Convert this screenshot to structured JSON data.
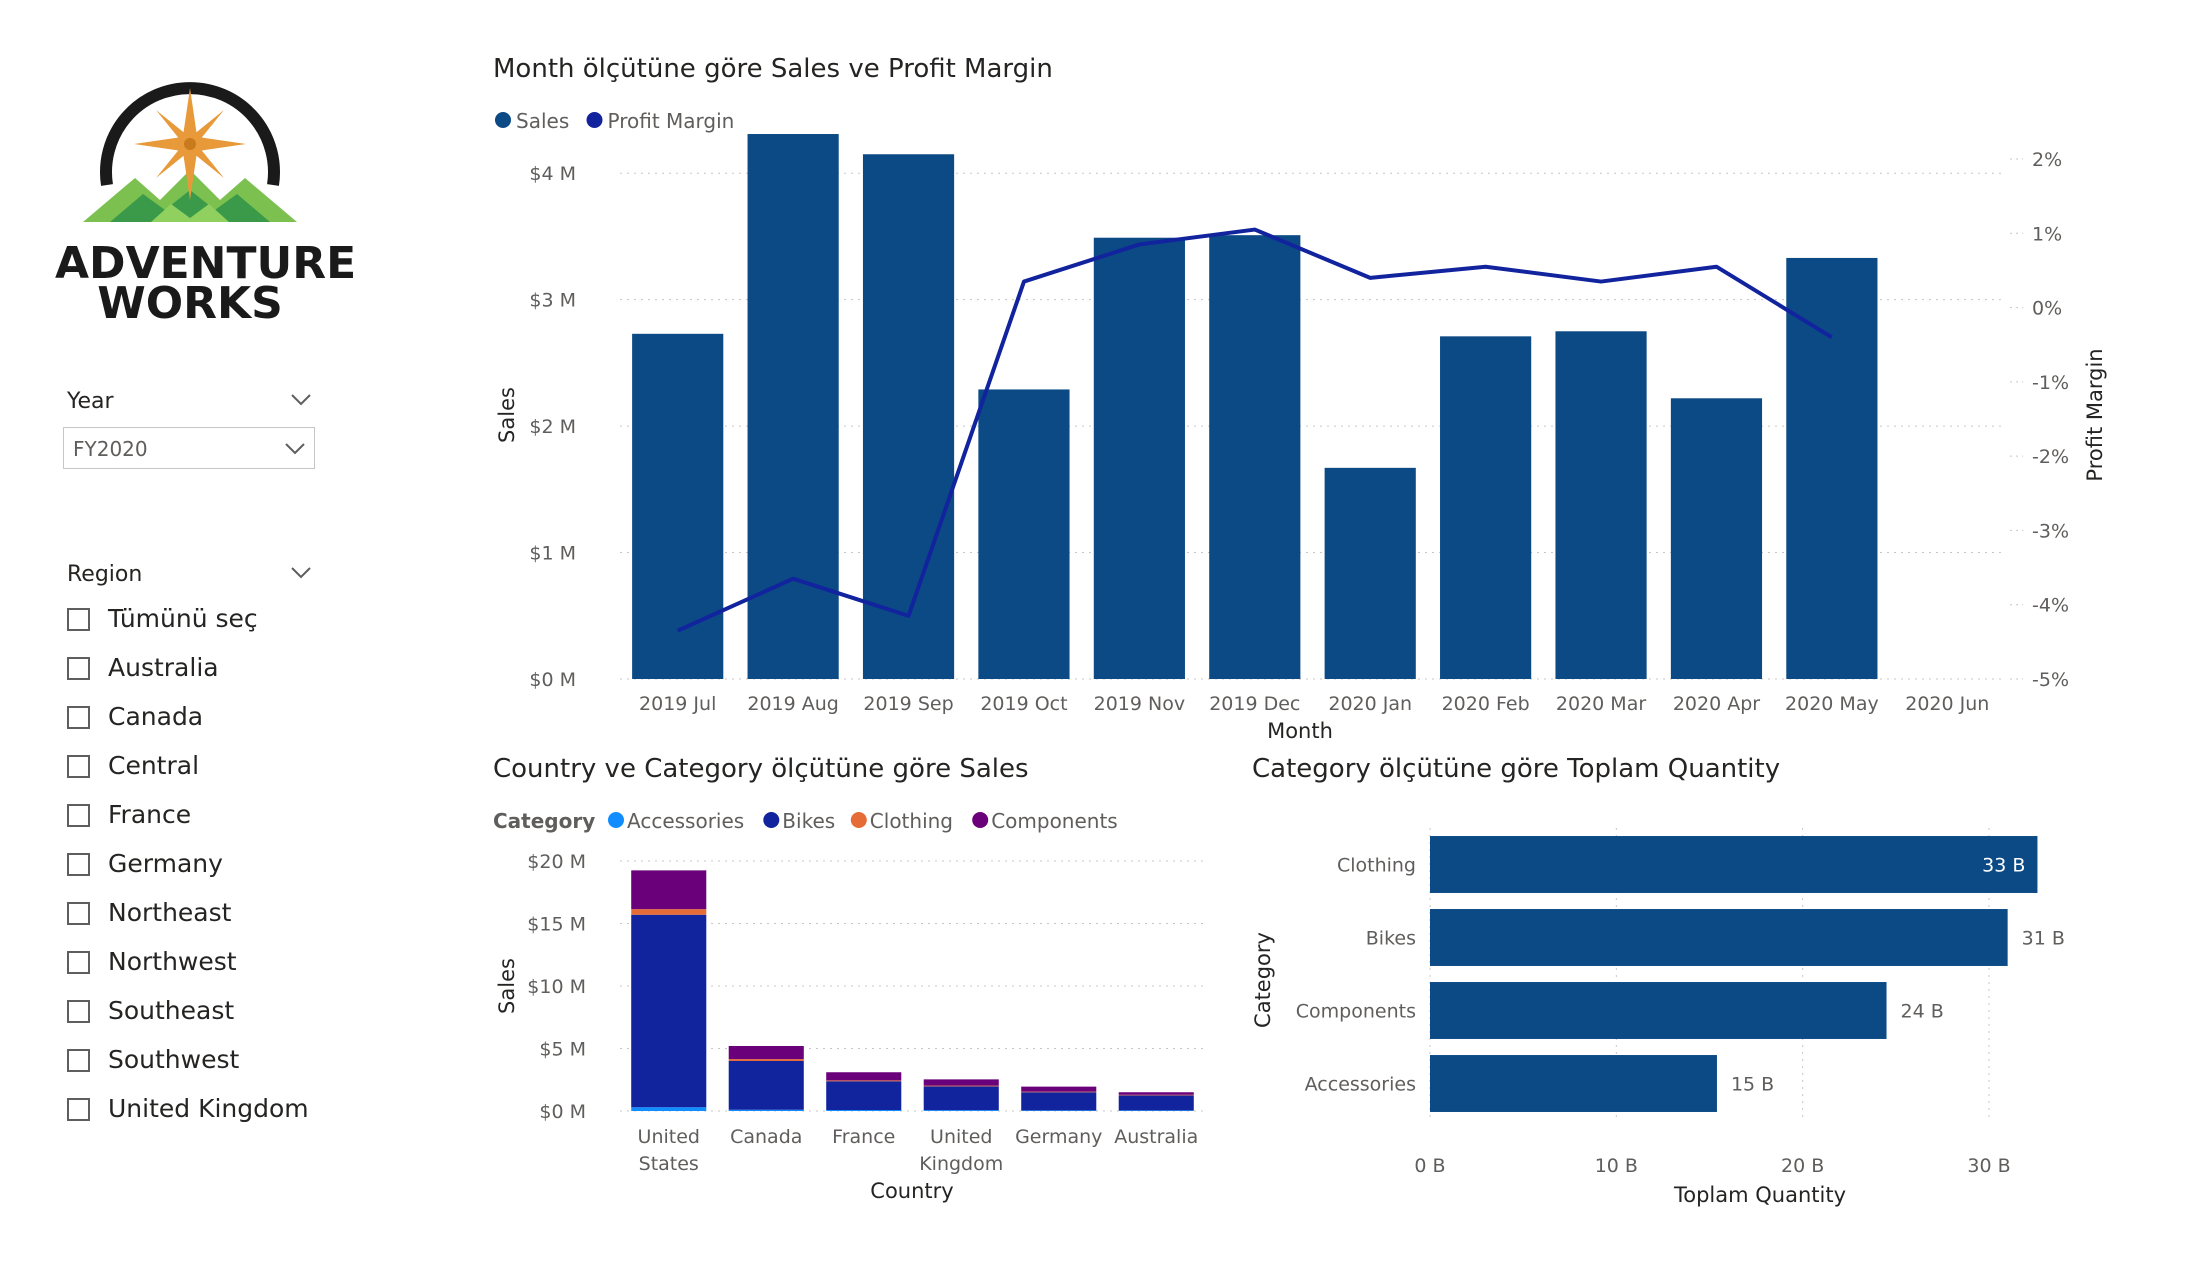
{
  "logo": {
    "line1": "ADVENTURE",
    "line2": "WORKS",
    "colors": {
      "ring": "#1a1a1a",
      "star": "#e8993a",
      "mountain_light": "#7cc04f",
      "mountain_dark": "#3a9a4a"
    }
  },
  "slicers": {
    "year": {
      "title": "Year",
      "selected": "FY2020"
    },
    "region": {
      "title": "Region",
      "items": [
        "Tümünü seç",
        "Australia",
        "Canada",
        "Central",
        "France",
        "Germany",
        "Northeast",
        "Northwest",
        "Southeast",
        "Southwest",
        "United Kingdom"
      ]
    }
  },
  "chart_data": [
    {
      "id": "month-chart",
      "type": "bar",
      "title": "Month ölçütüne göre Sales ve Profit Margin",
      "xlabel": "Month",
      "ylabel": "Sales",
      "y2label": "Profit Margin",
      "legend_title": "",
      "categories": [
        "2019 Jul",
        "2019 Aug",
        "2019 Sep",
        "2019 Oct",
        "2019 Nov",
        "2019 Dec",
        "2020 Jan",
        "2020 Feb",
        "2020 Mar",
        "2020 Apr",
        "2020 May",
        "2020 Jun"
      ],
      "series": [
        {
          "name": "Sales",
          "type": "bar",
          "color": "#0b4a84",
          "values": [
            2.73,
            4.31,
            4.15,
            2.29,
            3.49,
            3.51,
            1.67,
            2.71,
            2.75,
            2.22,
            3.33,
            null
          ]
        },
        {
          "name": "Profit Margin",
          "type": "line",
          "color": "#12239e",
          "values": [
            -4.35,
            -3.65,
            -4.15,
            0.35,
            0.85,
            1.05,
            0.4,
            0.55,
            0.35,
            0.55,
            -0.4,
            null
          ]
        }
      ],
      "ylim": [
        0,
        4.5
      ],
      "y_ticks": [
        "$0 M",
        "$1 M",
        "$2 M",
        "$3 M",
        "$4 M"
      ],
      "y_tick_values": [
        0,
        1,
        2,
        3,
        4
      ],
      "y2lim": [
        -5,
        2
      ],
      "y2_ticks": [
        "-5%",
        "-4%",
        "-3%",
        "-2%",
        "-1%",
        "0%",
        "1%",
        "2%"
      ],
      "y2_tick_values": [
        -5,
        -4,
        -3,
        -2,
        -1,
        0,
        1,
        2
      ],
      "legend_position": "top-left",
      "grid": true
    },
    {
      "id": "country-chart",
      "type": "bar",
      "stacked": true,
      "title": "Country ve Category ölçütüne göre Sales",
      "xlabel": "Country",
      "ylabel": "Sales",
      "legend_title": "Category",
      "categories": [
        [
          "United",
          "States"
        ],
        [
          "Canada"
        ],
        [
          "France"
        ],
        [
          "United",
          "Kingdom"
        ],
        [
          "Germany"
        ],
        [
          "Australia"
        ]
      ],
      "series": [
        {
          "name": "Accessories",
          "color": "#118dff",
          "values": [
            0.3,
            0.1,
            0.08,
            0.07,
            0.05,
            0.05
          ]
        },
        {
          "name": "Bikes",
          "color": "#12239e",
          "values": [
            15.4,
            3.9,
            2.3,
            1.9,
            1.45,
            1.2
          ]
        },
        {
          "name": "Clothing",
          "color": "#e66c37",
          "values": [
            0.45,
            0.15,
            0.07,
            0.06,
            0.05,
            0.05
          ]
        },
        {
          "name": "Components",
          "color": "#6b007b",
          "values": [
            3.1,
            1.05,
            0.65,
            0.5,
            0.4,
            0.2
          ]
        }
      ],
      "ylim": [
        0,
        20
      ],
      "y_ticks": [
        "$0 M",
        "$5 M",
        "$10 M",
        "$15 M",
        "$20 M"
      ],
      "y_tick_values": [
        0,
        5,
        10,
        15,
        20
      ],
      "legend_position": "top-left",
      "grid": true
    },
    {
      "id": "category-chart",
      "type": "bar",
      "orientation": "horizontal",
      "title": "Category ölçütüne göre Toplam Quantity",
      "xlabel": "Toplam Quantity",
      "ylabel": "Category",
      "categories": [
        "Clothing",
        "Bikes",
        "Components",
        "Accessories"
      ],
      "values": [
        32.6,
        31.0,
        24.5,
        15.4
      ],
      "data_labels": [
        "33 B",
        "31 B",
        "24 B",
        "15 B"
      ],
      "color": "#0b4a84",
      "xlim": [
        0,
        33.5
      ],
      "x_ticks": [
        "0 B",
        "10 B",
        "20 B",
        "30 B"
      ],
      "x_tick_values": [
        0,
        10,
        20,
        30
      ],
      "grid": true
    }
  ]
}
